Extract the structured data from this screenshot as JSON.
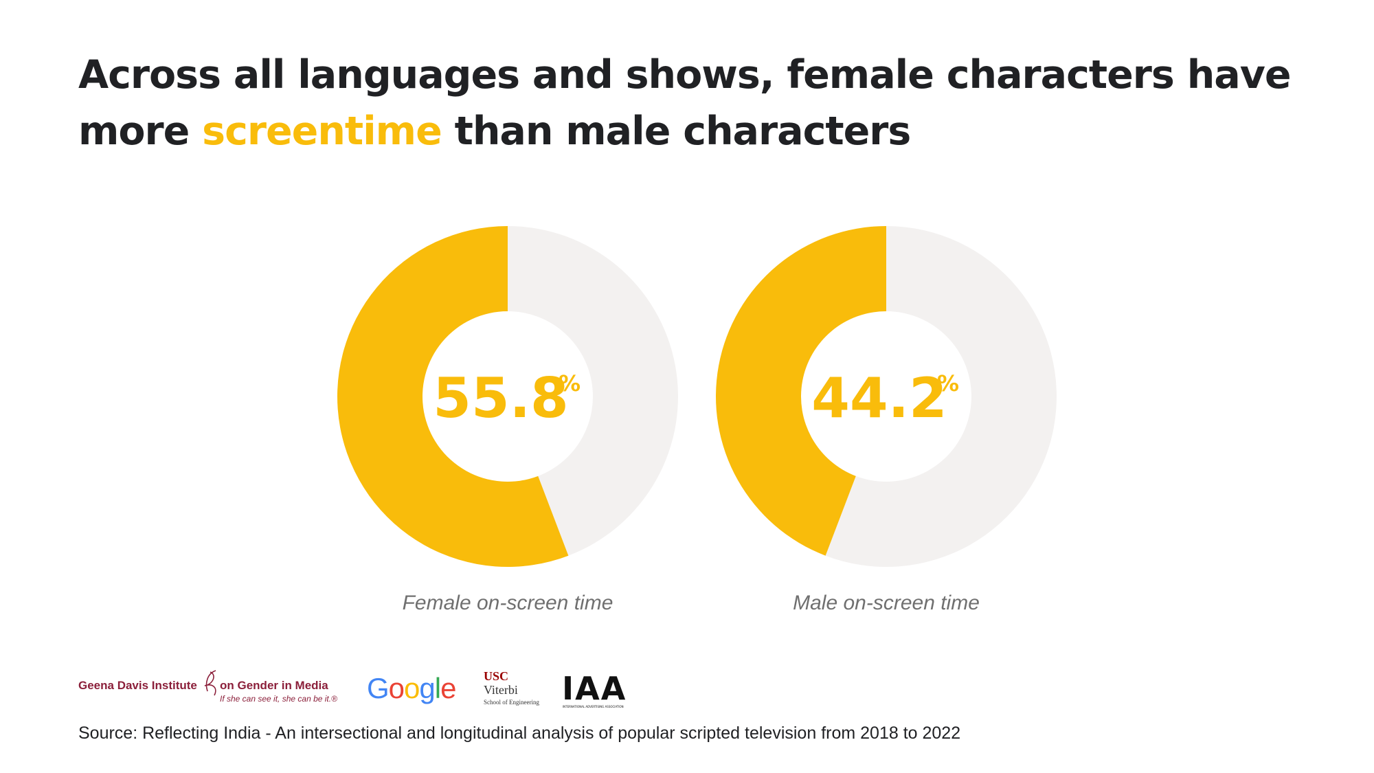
{
  "title": {
    "part1": "Across all languages and shows, female characters have",
    "part2_pre": "more ",
    "part2_highlight": "screentime",
    "part2_post": " than male characters"
  },
  "colors": {
    "accent": "#f9bc0b",
    "remainder": "#f3f1f0",
    "title_text": "#202124",
    "caption_text": "#6f6f6f"
  },
  "chart_data": [
    {
      "type": "pie",
      "subtype": "donut",
      "values": [
        55.8,
        44.2
      ],
      "highlight_value": "55.8",
      "unit": "%",
      "caption": "Female on-screen time"
    },
    {
      "type": "pie",
      "subtype": "donut",
      "values": [
        44.2,
        55.8
      ],
      "highlight_value": "44.2",
      "unit": "%",
      "caption": "Male on-screen time"
    }
  ],
  "logos": {
    "gdi_name": "Geena Davis Institute",
    "gdi_name2": "on Gender in Media",
    "gdi_tagline": "If she can see it, she can be it.®",
    "google": [
      "G",
      "o",
      "o",
      "g",
      "l",
      "e"
    ],
    "google_colors": [
      "#4285f4",
      "#ea4335",
      "#fbbc05",
      "#4285f4",
      "#34a853",
      "#ea4335"
    ],
    "usc_line1": "USC",
    "usc_line2": "Viterbi",
    "usc_line3": "School of Engineering",
    "iaa": "IAA",
    "iaa_sub": "INTERNATIONAL ADVERTISING ASSOCIATION"
  },
  "source": "Source: Reflecting India - An intersectional and longitudinal analysis of popular scripted television from 2018 to 2022"
}
